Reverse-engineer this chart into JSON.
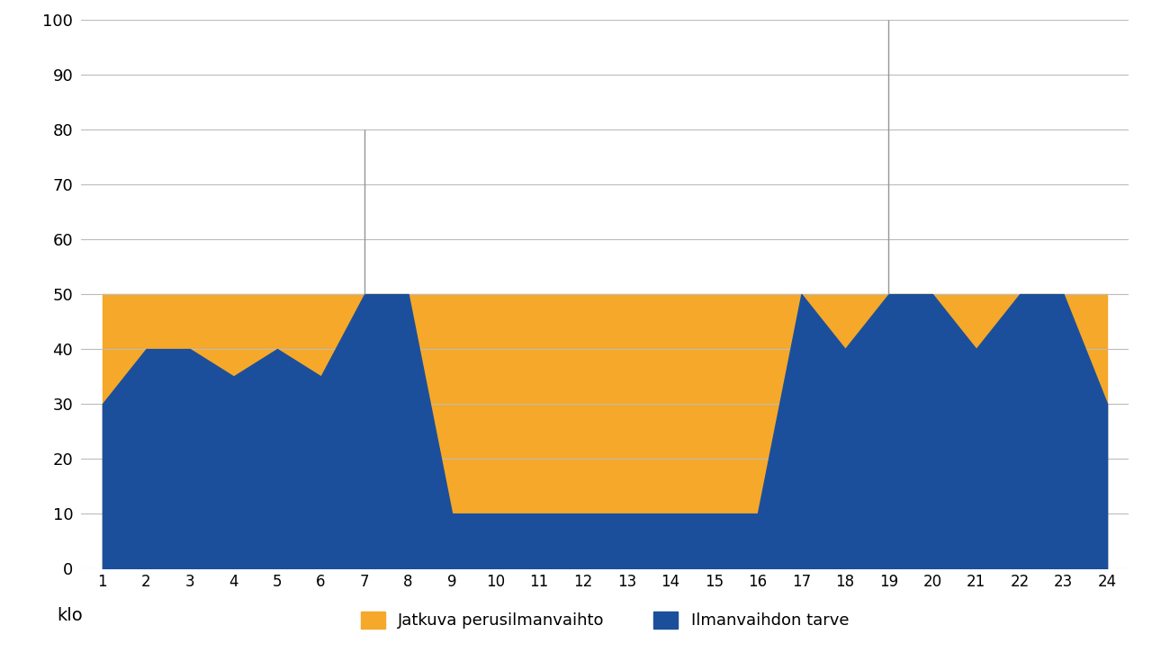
{
  "x": [
    1,
    2,
    3,
    4,
    5,
    6,
    7,
    8,
    9,
    10,
    11,
    12,
    13,
    14,
    15,
    16,
    17,
    18,
    19,
    20,
    21,
    22,
    23,
    24
  ],
  "demand": [
    30,
    40,
    40,
    35,
    40,
    35,
    50,
    50,
    10,
    10,
    10,
    10,
    10,
    10,
    10,
    10,
    50,
    40,
    50,
    50,
    40,
    50,
    50,
    30
  ],
  "base": [
    50,
    50,
    50,
    50,
    50,
    50,
    50,
    50,
    50,
    50,
    50,
    50,
    50,
    50,
    50,
    50,
    50,
    50,
    50,
    50,
    50,
    50,
    50,
    50
  ],
  "peak": [
    50,
    50,
    50,
    50,
    50,
    50,
    80,
    50,
    50,
    50,
    50,
    50,
    50,
    50,
    50,
    50,
    50,
    50,
    100,
    50,
    50,
    50,
    50,
    50
  ],
  "base_color": "#F5A829",
  "demand_color": "#1B4F9B",
  "peak_color": "#939598",
  "background_color": "#FFFFFF",
  "ylabel_ticks": [
    0,
    10,
    20,
    30,
    40,
    50,
    60,
    70,
    80,
    90,
    100
  ],
  "xlabel_label": "klo",
  "ylim": [
    0,
    100
  ],
  "legend_base": "Jatkuva perusilmanvaihto",
  "legend_demand": "Ilmanvaihdon tarve",
  "grid_color": "#BBBBBB"
}
